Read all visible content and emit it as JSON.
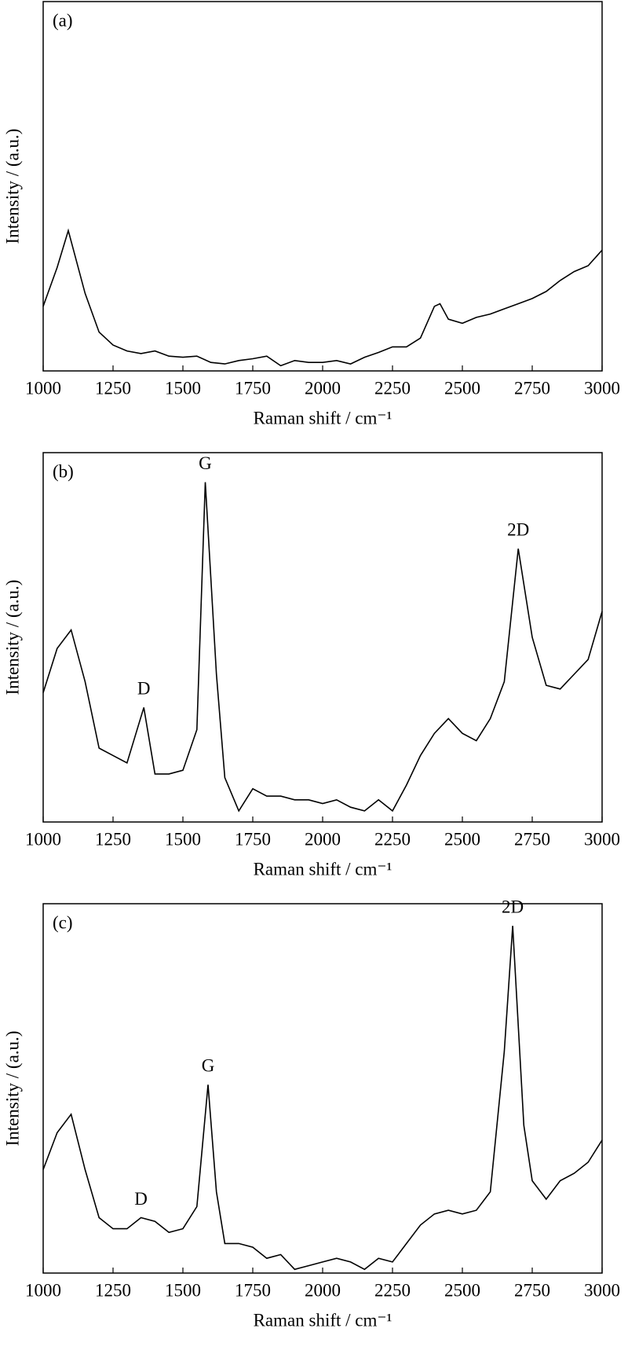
{
  "chart_data": [
    {
      "type": "line",
      "label": "(a)",
      "xlabel": "Raman shift / cm⁻¹",
      "ylabel": "Intensity / (a.u.)",
      "xlim": [
        1000,
        3000
      ],
      "ylim": [
        0,
        100
      ],
      "xticks": [
        1000,
        1250,
        1500,
        1750,
        2000,
        2250,
        2500,
        2750,
        3000
      ],
      "color": "#000000",
      "x": [
        1000,
        1050,
        1090,
        1150,
        1200,
        1250,
        1300,
        1350,
        1400,
        1450,
        1500,
        1550,
        1600,
        1650,
        1700,
        1750,
        1800,
        1850,
        1900,
        1950,
        2000,
        2050,
        2100,
        2150,
        2200,
        2250,
        2300,
        2350,
        2400,
        2420,
        2450,
        2500,
        2550,
        2600,
        2650,
        2700,
        2750,
        2800,
        2850,
        2900,
        2950,
        3000
      ],
      "values": [
        17.5,
        28,
        38,
        21,
        10.5,
        7,
        5.4,
        4.7,
        5.4,
        4,
        3.7,
        4,
        2.3,
        1.9,
        2.8,
        3.3,
        4,
        1.4,
        2.8,
        2.3,
        2.3,
        2.8,
        1.9,
        3.7,
        5,
        6.5,
        6.5,
        8.9,
        17.5,
        18.2,
        14,
        12.9,
        14.5,
        15.4,
        16.8,
        18.2,
        19.6,
        21.5,
        24.5,
        26.9,
        28.5,
        32.7
      ],
      "annotations": []
    },
    {
      "type": "line",
      "label": "(b)",
      "xlabel": "Raman shift / cm⁻¹",
      "ylabel": "Intensity / (a.u.)",
      "xlim": [
        1000,
        3000
      ],
      "ylim": [
        0,
        100
      ],
      "xticks": [
        1000,
        1250,
        1500,
        1750,
        2000,
        2250,
        2500,
        2750,
        3000
      ],
      "color": "#000000",
      "x": [
        1000,
        1050,
        1100,
        1150,
        1200,
        1250,
        1300,
        1360,
        1400,
        1450,
        1500,
        1550,
        1580,
        1620,
        1650,
        1700,
        1750,
        1800,
        1850,
        1900,
        1950,
        2000,
        2050,
        2100,
        2150,
        2200,
        2250,
        2300,
        2350,
        2400,
        2450,
        2500,
        2550,
        2600,
        2650,
        2700,
        2750,
        2800,
        2850,
        2900,
        2950,
        3000
      ],
      "values": [
        35,
        47,
        52,
        38,
        20,
        18,
        16,
        31,
        13,
        13,
        14,
        25,
        92,
        40,
        12,
        3,
        9,
        7,
        7,
        6,
        6,
        5,
        6,
        4,
        3,
        6,
        3,
        10,
        18,
        24,
        28,
        24,
        22,
        28,
        38,
        74,
        50,
        37,
        36,
        40,
        44,
        57
      ],
      "annotations": [
        {
          "text": "D",
          "x": 1360
        },
        {
          "text": "G",
          "x": 1580
        },
        {
          "text": "2D",
          "x": 2700
        }
      ]
    },
    {
      "type": "line",
      "label": "(c)",
      "xlabel": "Raman shift / cm⁻¹",
      "ylabel": "Intensity / (a.u.)",
      "xlim": [
        1000,
        3000
      ],
      "ylim": [
        0,
        100
      ],
      "xticks": [
        1000,
        1250,
        1500,
        1750,
        2000,
        2250,
        2500,
        2750,
        3000
      ],
      "color": "#000000",
      "x": [
        1000,
        1050,
        1100,
        1150,
        1200,
        1250,
        1300,
        1350,
        1400,
        1450,
        1500,
        1550,
        1590,
        1620,
        1650,
        1700,
        1750,
        1800,
        1850,
        1900,
        1950,
        2000,
        2050,
        2100,
        2150,
        2200,
        2250,
        2300,
        2350,
        2400,
        2450,
        2500,
        2550,
        2600,
        2650,
        2680,
        2720,
        2750,
        2800,
        2850,
        2900,
        2950,
        3000
      ],
      "values": [
        28,
        38,
        43,
        28,
        15,
        12,
        12,
        15,
        14,
        11,
        12,
        18,
        51,
        22,
        8,
        8,
        7,
        4,
        5,
        1,
        2,
        3,
        4,
        3,
        1,
        4,
        3,
        8,
        13,
        16,
        17,
        16,
        17,
        22,
        60,
        94,
        40,
        25,
        20,
        25,
        27,
        30,
        36
      ],
      "annotations": [
        {
          "text": "D",
          "x": 1350
        },
        {
          "text": "G",
          "x": 1590
        },
        {
          "text": "2D",
          "x": 2680
        }
      ]
    }
  ]
}
